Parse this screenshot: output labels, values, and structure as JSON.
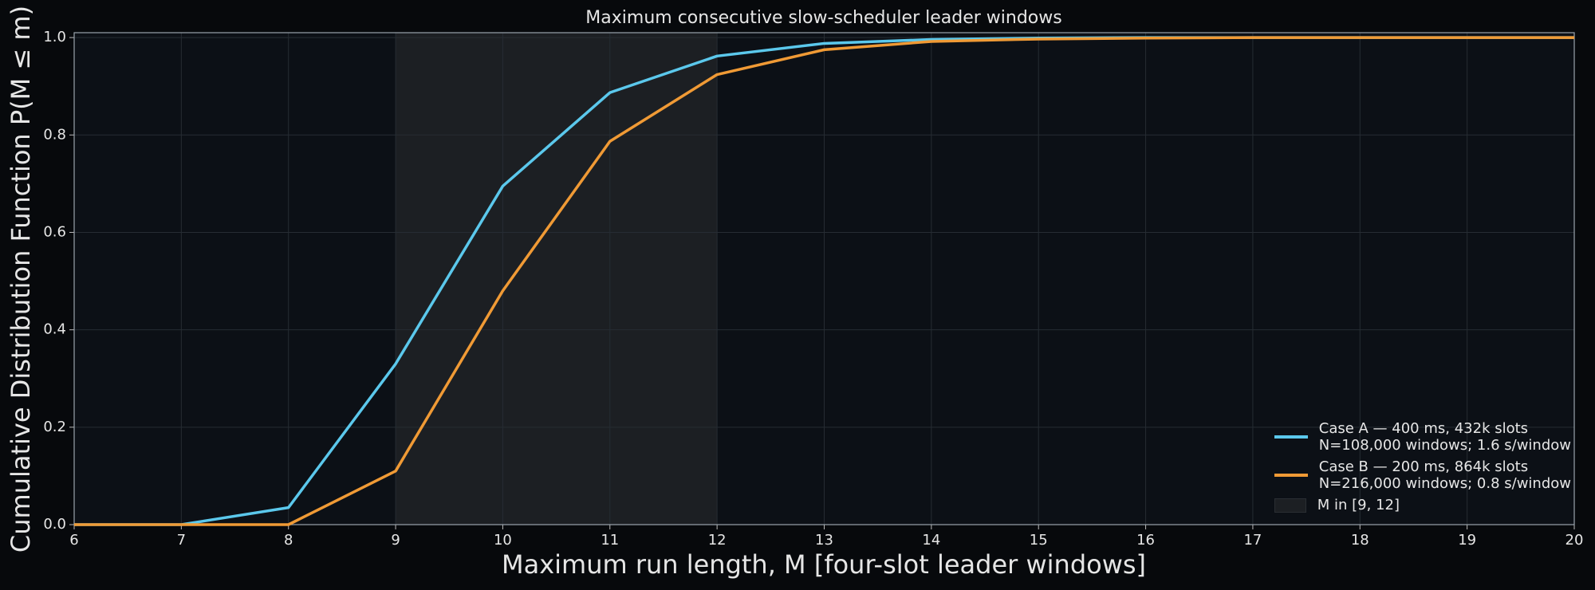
{
  "chart_data": {
    "type": "line",
    "title": "Maximum consecutive slow-scheduler leader windows",
    "x_label": "Maximum run length, M [four-slot leader windows]",
    "y_label": "Cumulative Distribution Function P(M ≤ m)",
    "x": [
      6,
      7,
      8,
      9,
      10,
      11,
      12,
      13,
      14,
      15,
      16,
      17,
      18,
      19,
      20
    ],
    "series": [
      {
        "name": "Case A — 400 ms, 432k slots\nN=108,000 windows; 1.6 s/window",
        "color": "#5bc8ec",
        "values": [
          0,
          0,
          0.035,
          0.33,
          0.695,
          0.887,
          0.962,
          0.988,
          0.996,
          0.999,
          1,
          1,
          1,
          1,
          1
        ]
      },
      {
        "name": "Case B — 200 ms, 864k slots\nN=216,000 windows; 0.8 s/window",
        "color": "#f09a35",
        "values": [
          0,
          0,
          0,
          0.11,
          0.48,
          0.787,
          0.924,
          0.975,
          0.992,
          0.997,
          0.999,
          1,
          1,
          1,
          1
        ]
      }
    ],
    "shade": {
      "x": [
        9,
        12
      ],
      "label": "M in [9, 12]",
      "color": "#1c1f23"
    },
    "xlim": [
      6,
      20
    ],
    "ylim": [
      0,
      1.01
    ],
    "xticks": [
      6,
      7,
      8,
      9,
      10,
      11,
      12,
      13,
      14,
      15,
      16,
      17,
      18,
      19,
      20
    ],
    "yticks": [
      {
        "value": 0,
        "label": "0.0"
      },
      0.2,
      0.4,
      0.6,
      0.8,
      {
        "value": 1,
        "label": "1.0"
      }
    ],
    "grid": true,
    "legend": "lower right"
  }
}
